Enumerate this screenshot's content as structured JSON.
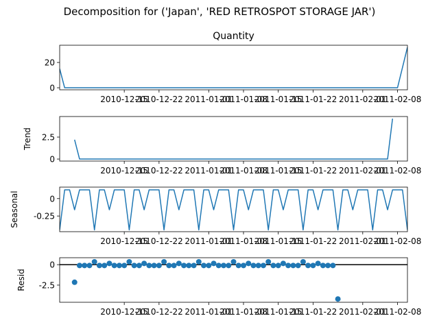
{
  "figure": {
    "title": "Decomposition for ('Japan', 'RED RETROSPOT STORAGE JAR')"
  },
  "chart_data": [
    {
      "type": "line",
      "title": "Quantity",
      "ylabel": "",
      "x_start": "2010-12-02",
      "x_end": "2011-02-10",
      "x_ticks": [
        "2010-12-15",
        "2010-12-22",
        "2011-01-01",
        "2011-01-08",
        "2011-01-15",
        "2011-01-22",
        "2011-02-01",
        "2011-02-08"
      ],
      "ylim": [
        -1.6,
        33.6
      ],
      "y_ticks": [
        0,
        20
      ],
      "series": [
        {
          "color": "#1f77b4",
          "points": [
            [
              "2010-12-02",
              15
            ],
            [
              "2010-12-03",
              0
            ],
            [
              "2011-02-08",
              0
            ],
            [
              "2011-02-10",
              32
            ]
          ]
        }
      ]
    },
    {
      "type": "line",
      "title": "",
      "ylabel": "Trend",
      "x_start": "2010-12-02",
      "x_end": "2011-02-10",
      "x_ticks": [
        "2010-12-15",
        "2010-12-22",
        "2011-01-01",
        "2011-01-08",
        "2011-01-15",
        "2011-01-22",
        "2011-02-01",
        "2011-02-08"
      ],
      "ylim": [
        -0.23,
        4.84
      ],
      "y_ticks": [
        0.0,
        2.5
      ],
      "series": [
        {
          "color": "#1f77b4",
          "points": [
            [
              "2010-12-05",
              2.2
            ],
            [
              "2010-12-06",
              0
            ],
            [
              "2011-02-06",
              0
            ],
            [
              "2011-02-07",
              4.6
            ]
          ]
        }
      ]
    },
    {
      "type": "line",
      "title": "",
      "ylabel": "Seasonal",
      "x_start": "2010-12-02",
      "x_end": "2011-02-10",
      "x_ticks": [
        "2010-12-15",
        "2010-12-22",
        "2011-01-01",
        "2011-01-08",
        "2011-01-15",
        "2011-01-22",
        "2011-02-01",
        "2011-02-08"
      ],
      "ylim": [
        -0.475,
        0.165
      ],
      "y_ticks": [
        0.0,
        -0.25
      ],
      "pattern_start": "2010-12-02",
      "pattern": [
        -0.45,
        0.125,
        0.125,
        -0.16,
        0.125,
        0.125,
        0.125
      ],
      "series": [
        {
          "color": "#1f77b4"
        }
      ]
    },
    {
      "type": "scatter",
      "title": "",
      "ylabel": "Resid",
      "x_start": "2010-12-02",
      "x_end": "2011-02-10",
      "x_ticks": [
        "2010-12-15",
        "2010-12-22",
        "2011-01-01",
        "2011-01-08",
        "2011-01-15",
        "2011-01-22",
        "2011-02-01",
        "2011-02-08"
      ],
      "ylim": [
        -4.6,
        0.85
      ],
      "y_ticks": [
        0.0,
        -2.5
      ],
      "zero_line": true,
      "series": [
        {
          "color": "#1f77b4",
          "start": "2010-12-05",
          "values": [
            -2.15,
            -0.1,
            -0.1,
            -0.1,
            0.35,
            -0.1,
            -0.1,
            0.15,
            -0.1,
            -0.1,
            -0.1,
            0.35,
            -0.1,
            -0.1,
            0.15,
            -0.1,
            -0.1,
            -0.1,
            0.35,
            -0.1,
            -0.1,
            0.15,
            -0.1,
            -0.1,
            -0.1,
            0.35,
            -0.1,
            -0.1,
            0.15,
            -0.1,
            -0.1,
            -0.1,
            0.35,
            -0.1,
            -0.1,
            0.15,
            -0.1,
            -0.1,
            -0.1,
            0.35,
            -0.1,
            -0.1,
            0.15,
            -0.1,
            -0.1,
            -0.1,
            0.35,
            -0.1,
            -0.1,
            0.15,
            -0.1,
            -0.1,
            -0.1,
            -4.2
          ]
        }
      ]
    }
  ]
}
